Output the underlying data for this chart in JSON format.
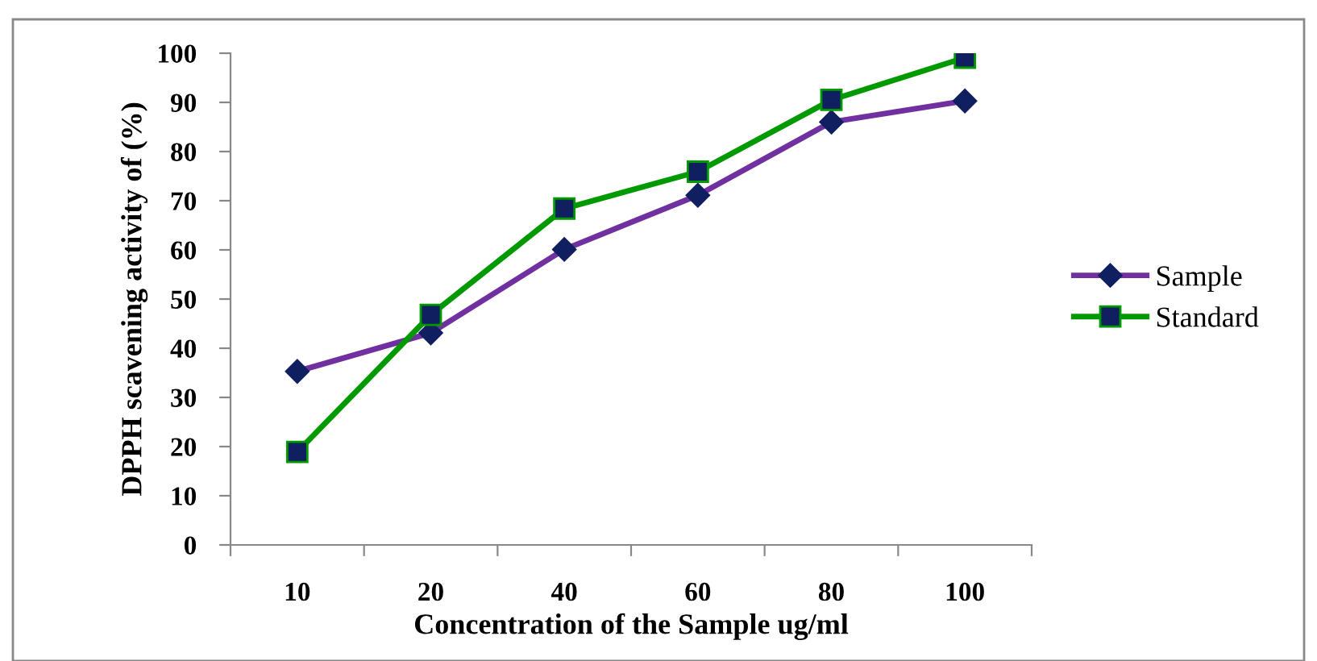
{
  "chart_data": {
    "type": "line",
    "xlabel": "Concentration of the Sample ug/ml",
    "ylabel": "DPPH scavening activity of (%)",
    "categories": [
      "10",
      "20",
      "40",
      "60",
      "80",
      "100"
    ],
    "series": [
      {
        "name": "Sample",
        "color": "#7030a0",
        "values": [
          35.3,
          43.1,
          60.1,
          71.1,
          86.0,
          90.3
        ],
        "marker": "diamond"
      },
      {
        "name": "Standard",
        "color": "#009900",
        "values": [
          18.9,
          46.8,
          68.4,
          75.9,
          90.5,
          99.1
        ],
        "marker": "square"
      }
    ],
    "ylim": [
      0,
      100
    ],
    "yticks": [
      0,
      10,
      20,
      30,
      40,
      50,
      60,
      70,
      80,
      90,
      100
    ],
    "grid": false,
    "legend": "right",
    "line_style": "solid"
  }
}
